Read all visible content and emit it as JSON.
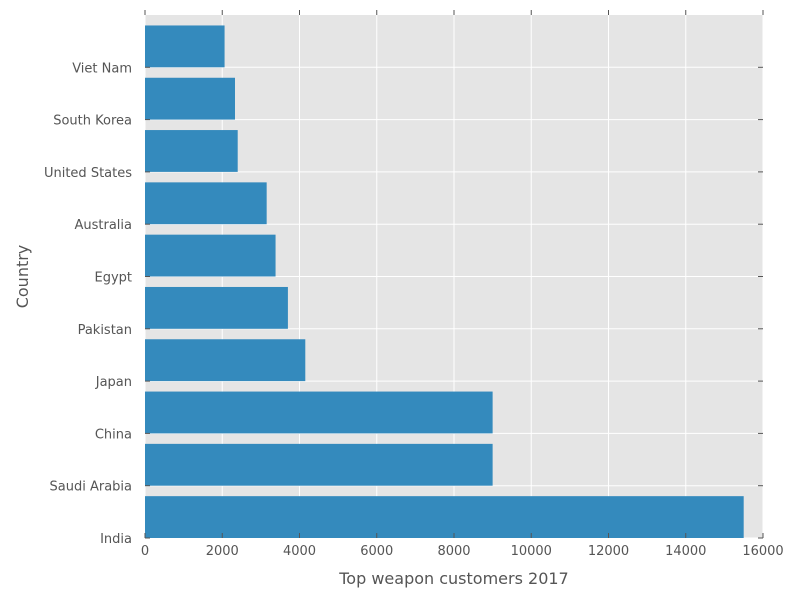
{
  "chart_data": {
    "type": "bar",
    "orientation": "horizontal",
    "title": "",
    "xlabel": "Top weapon customers 2017",
    "ylabel": "Country",
    "categories": [
      "India",
      "Saudi Arabia",
      "China",
      "Japan",
      "Pakistan",
      "Egypt",
      "Australia",
      "United States",
      "South Korea",
      "Viet Nam"
    ],
    "values": [
      15500,
      9000,
      9000,
      4150,
      3700,
      3380,
      3150,
      2400,
      2330,
      2060
    ],
    "xlim": [
      0,
      16000
    ],
    "xticks": [
      "0",
      "2000",
      "4000",
      "6000",
      "8000",
      "10000",
      "12000",
      "14000",
      "16000"
    ],
    "grid": true,
    "legend": "none",
    "colors": {
      "bar": "#348abd",
      "plot_background": "#e5e5e5",
      "grid": "#ffffff",
      "text": "#555555"
    }
  }
}
